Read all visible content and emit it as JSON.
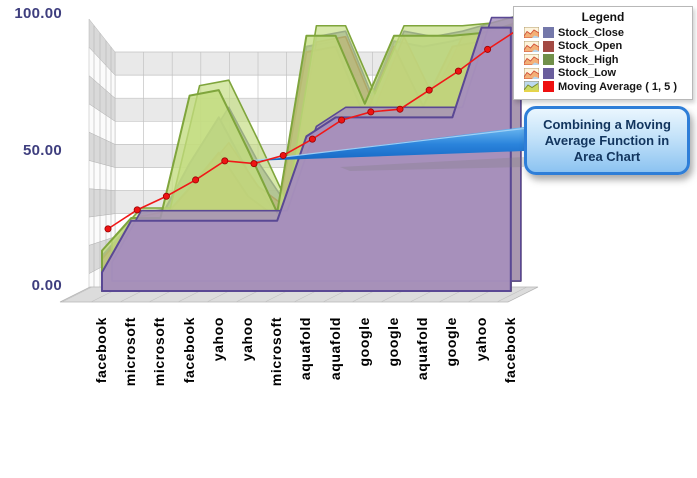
{
  "y_axis": {
    "labels": [
      "100.00",
      "50.00",
      "0.00"
    ]
  },
  "legend": {
    "title": "Legend",
    "items": [
      {
        "label": "Stock_Close",
        "swatch": "#7478aa",
        "icon": "area-chart-icon"
      },
      {
        "label": "Stock_Open",
        "swatch": "#a34a44",
        "icon": "area-chart-icon"
      },
      {
        "label": "Stock_High",
        "swatch": "#71904a",
        "icon": "area-chart-icon"
      },
      {
        "label": "Stock_Low",
        "swatch": "#6a5e9d",
        "icon": "area-chart-icon"
      },
      {
        "label": "Moving Average ( 1, 5 )",
        "swatch": "#ee1010",
        "icon": "moving-average-icon"
      }
    ]
  },
  "callout": {
    "text": "Combining a Moving Average Function in Area Chart"
  },
  "chart_data": {
    "type": "area",
    "style": "3d",
    "categories": [
      "facebook",
      "microsoft",
      "microsoft",
      "facebook",
      "yahoo",
      "yahoo",
      "microsoft",
      "aquafold",
      "aquafold",
      "google",
      "google",
      "aquafold",
      "google",
      "yahoo",
      "facebook"
    ],
    "series": [
      {
        "name": "Stock_Close",
        "fill": "#8284b4",
        "stroke": "#4f5190",
        "fill_opacity": 0.95,
        "values": [
          11,
          23,
          25,
          45,
          62,
          42,
          26,
          88,
          90,
          64,
          90,
          88,
          90,
          93,
          96
        ]
      },
      {
        "name": "Stock_Open",
        "fill": "#b25f57",
        "stroke": "#8a423c",
        "fill_opacity": 0.72,
        "values": [
          10,
          22,
          24,
          36,
          49,
          33,
          25,
          86,
          88,
          62,
          88,
          66,
          88,
          90,
          94
        ]
      },
      {
        "name": "Stock_High",
        "fill": "#c3dc7f",
        "stroke": "#7fa53c",
        "fill_opacity": 0.78,
        "values": [
          13,
          25,
          25,
          70,
          72,
          50,
          27,
          92,
          92,
          67,
          92,
          92,
          92,
          93,
          96
        ]
      },
      {
        "name": "Stock_Low",
        "fill": "#a690bb",
        "stroke": "#5a4894",
        "fill_opacity": 0.97,
        "values": [
          5,
          24,
          24,
          24,
          24,
          24,
          24,
          55,
          62,
          62,
          62,
          62,
          62,
          95,
          95
        ]
      }
    ],
    "overlay_line": {
      "name": "Moving Average ( 1, 5 )",
      "color": "#f01818",
      "marker_color": "#ee1414",
      "values": [
        21,
        28,
        33,
        39,
        46,
        45,
        48,
        54,
        61,
        64,
        65,
        72,
        79,
        87,
        94
      ]
    },
    "ylim": [
      0,
      100
    ],
    "y_ticks": [
      0,
      50,
      100
    ],
    "grid": true,
    "legend_position": "top-right"
  }
}
